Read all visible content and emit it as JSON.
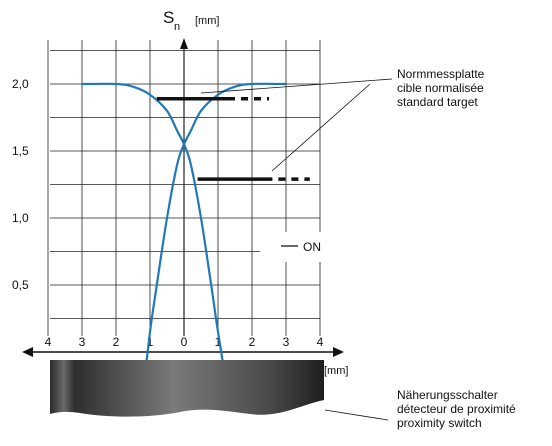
{
  "chart_data": {
    "type": "line",
    "y_axis": {
      "label": "S",
      "label_subscript": "n",
      "unit": "[mm]",
      "ticks": [
        "0,5",
        "1,0",
        "1,5",
        "2,0"
      ],
      "tick_values": [
        0.5,
        1.0,
        1.5,
        2.0
      ],
      "range": [
        0.0,
        2.4
      ],
      "grid": true
    },
    "x_axis": {
      "unit": "[mm]",
      "tick_labels": [
        "4",
        "3",
        "2",
        "1",
        "0",
        "1",
        "2",
        "3",
        "4"
      ],
      "range": [
        -4,
        4
      ],
      "grid": true
    },
    "curves": [
      {
        "points": [
          [
            -3.0,
            2.0
          ],
          [
            -2.0,
            2.0
          ],
          [
            -1.5,
            1.98
          ],
          [
            -1.0,
            1.92
          ],
          [
            -0.5,
            1.8
          ],
          [
            -0.2,
            1.65
          ],
          [
            0.0,
            1.55
          ],
          [
            0.2,
            1.4
          ],
          [
            0.5,
            1.0
          ],
          [
            0.8,
            0.5
          ],
          [
            1.0,
            0.15
          ],
          [
            1.35,
            -0.4
          ]
        ]
      },
      {
        "points": [
          [
            3.0,
            2.0
          ],
          [
            2.0,
            2.0
          ],
          [
            1.5,
            1.98
          ],
          [
            1.0,
            1.92
          ],
          [
            0.5,
            1.8
          ],
          [
            0.2,
            1.65
          ],
          [
            0.0,
            1.55
          ],
          [
            -0.2,
            1.4
          ],
          [
            -0.5,
            1.0
          ],
          [
            -0.8,
            0.5
          ],
          [
            -1.0,
            0.15
          ],
          [
            -1.25,
            -0.4
          ]
        ]
      }
    ],
    "markers": [
      {
        "x_from": -0.8,
        "x_to": 1.5,
        "dash_to": 2.5,
        "y": 1.89
      },
      {
        "x_from": 0.4,
        "x_to": 2.6,
        "dash_to": 3.7,
        "y": 1.29
      }
    ],
    "legend": {
      "label": "ON"
    }
  },
  "annotations": {
    "target": {
      "line1": "Normmessplatte",
      "line2": "cible normalisée",
      "line3": "standard target"
    },
    "switch": {
      "line1": "Näherungsschalter",
      "line2": "détecteur de proximité",
      "line3": "proximity  switch"
    }
  },
  "colors": {
    "curve": "#1f78b8",
    "marker": "#111111",
    "grid": "#222222",
    "switch_body_dark": "#2c2c2c",
    "switch_body_light": "#8c8c8c"
  }
}
